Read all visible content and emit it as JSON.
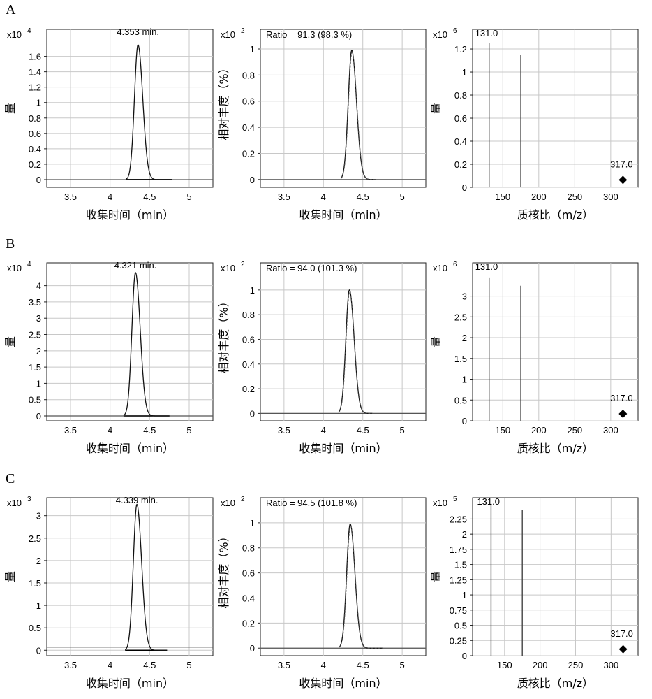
{
  "panels": [
    {
      "letter": "A",
      "chromatogram": {
        "type": "line",
        "multiplier": "x10",
        "exponent": "4",
        "peak_label": "4.353 min.",
        "ylabel": "量",
        "xlabel": "收集时间（min）",
        "xlim": [
          3.2,
          5.3
        ],
        "ylim": [
          -0.1,
          1.95
        ],
        "xticks": [
          3.5,
          4,
          4.5,
          5
        ],
        "xtick_labels": [
          "3.5",
          "4",
          "4.5",
          "5"
        ],
        "yticks": [
          0,
          0.2,
          0.4,
          0.6,
          0.8,
          1,
          1.2,
          1.4,
          1.6
        ],
        "ytick_labels": [
          "0",
          "0.2",
          "0.4",
          "0.6",
          "0.8",
          "1",
          "1.2",
          "1.4",
          "1.6"
        ],
        "baseline": 0,
        "peak": {
          "center": 4.353,
          "height": 1.75,
          "sigma_left": 0.045,
          "sigma_right": 0.06
        },
        "trace_start": 4.2,
        "trace_end": 4.78
      },
      "ratio": {
        "type": "line",
        "multiplier": "x10",
        "exponent": "2",
        "ratio_label": "Ratio = 91.3 (98.3 %)",
        "ylabel": "相对丰度（%）",
        "xlabel": "收集时间（min）",
        "xlim": [
          3.2,
          5.3
        ],
        "ylim": [
          -0.06,
          1.15
        ],
        "xticks": [
          3.5,
          4,
          4.5,
          5
        ],
        "xtick_labels": [
          "3.5",
          "4",
          "4.5",
          "5"
        ],
        "yticks": [
          0,
          0.2,
          0.4,
          0.6,
          0.8,
          1
        ],
        "ytick_labels": [
          "0",
          "0.2",
          "0.4",
          "0.6",
          "0.8",
          "1"
        ],
        "peak": {
          "center": 4.36,
          "height": 0.99,
          "sigma_left": 0.045,
          "sigma_right": 0.06
        },
        "trace_start": 4.22,
        "trace_end": 4.66
      },
      "spectrum": {
        "type": "bar",
        "multiplier": "x10",
        "exponent": "6",
        "ylabel": "量",
        "xlabel": "质核比（m/z）",
        "xlim": [
          108,
          338
        ],
        "ylim": [
          0,
          1.37
        ],
        "xticks": [
          150,
          200,
          250,
          300
        ],
        "xtick_labels": [
          "150",
          "200",
          "250",
          "300"
        ],
        "yticks": [
          0,
          0.2,
          0.4,
          0.6,
          0.8,
          1,
          1.2
        ],
        "ytick_labels": [
          "0",
          "0.2",
          "0.4",
          "0.6",
          "0.8",
          "1",
          "1.2"
        ],
        "bars": [
          {
            "mz": 131.0,
            "intensity": 1.25
          },
          {
            "mz": 175.0,
            "intensity": 1.15
          }
        ],
        "bar_label": "131.0",
        "precursor": {
          "mz": 317.0,
          "intensity": 0.04,
          "label": "317.0"
        }
      }
    },
    {
      "letter": "B",
      "chromatogram": {
        "type": "line",
        "multiplier": "x10",
        "exponent": "4",
        "peak_label": "4.321 min.",
        "ylabel": "量",
        "xlabel": "收集时间（min）",
        "xlim": [
          3.2,
          5.3
        ],
        "ylim": [
          -0.15,
          4.7
        ],
        "xticks": [
          3.5,
          4,
          4.5,
          5
        ],
        "xtick_labels": [
          "3.5",
          "4",
          "4.5",
          "5"
        ],
        "yticks": [
          0,
          0.5,
          1,
          1.5,
          2,
          2.5,
          3,
          3.5,
          4
        ],
        "ytick_labels": [
          "0",
          "0.5",
          "1",
          "1.5",
          "2",
          "2.5",
          "3",
          "3.5",
          "4"
        ],
        "baseline": 0,
        "peak": {
          "center": 4.321,
          "height": 4.4,
          "sigma_left": 0.045,
          "sigma_right": 0.06
        },
        "trace_start": 4.17,
        "trace_end": 4.75
      },
      "ratio": {
        "type": "line",
        "multiplier": "x10",
        "exponent": "2",
        "ratio_label": "Ratio = 94.0 (101.3 %)",
        "ylabel": "相对丰度（%）",
        "xlabel": "收集时间（min）",
        "xlim": [
          3.2,
          5.3
        ],
        "ylim": [
          -0.06,
          1.22
        ],
        "xticks": [
          3.5,
          4,
          4.5,
          5
        ],
        "xtick_labels": [
          "3.5",
          "4",
          "4.5",
          "5"
        ],
        "yticks": [
          0,
          0.2,
          0.4,
          0.6,
          0.8,
          1
        ],
        "ytick_labels": [
          "0",
          "0.2",
          "0.4",
          "0.6",
          "0.8",
          "1"
        ],
        "peak": {
          "center": 4.33,
          "height": 1.0,
          "sigma_left": 0.045,
          "sigma_right": 0.06
        },
        "trace_start": 4.19,
        "trace_end": 4.62
      },
      "spectrum": {
        "type": "bar",
        "multiplier": "x10",
        "exponent": "6",
        "ylabel": "量",
        "xlabel": "质核比（m/z）",
        "xlim": [
          108,
          338
        ],
        "ylim": [
          0,
          3.8
        ],
        "xticks": [
          150,
          200,
          250,
          300
        ],
        "xtick_labels": [
          "150",
          "200",
          "250",
          "300"
        ],
        "yticks": [
          0,
          0.5,
          1,
          1.5,
          2,
          2.5,
          3
        ],
        "ytick_labels": [
          "0",
          "0.5",
          "1",
          "1.5",
          "2",
          "2.5",
          "3"
        ],
        "bars": [
          {
            "mz": 131.0,
            "intensity": 3.45
          },
          {
            "mz": 175.0,
            "intensity": 3.25
          }
        ],
        "bar_label": "131.0",
        "precursor": {
          "mz": 317.0,
          "intensity": 0.1,
          "label": "317.0"
        }
      }
    },
    {
      "letter": "C",
      "chromatogram": {
        "type": "line",
        "multiplier": "x10",
        "exponent": "3",
        "peak_label": "4.339 min.",
        "ylabel": "量",
        "xlabel": "收集时间（min）",
        "xlim": [
          3.2,
          5.3
        ],
        "ylim": [
          -0.12,
          3.4
        ],
        "xticks": [
          3.5,
          4,
          4.5,
          5
        ],
        "xtick_labels": [
          "3.5",
          "4",
          "4.5",
          "5"
        ],
        "yticks": [
          0,
          0.5,
          1,
          1.5,
          2,
          2.5,
          3
        ],
        "ytick_labels": [
          "0",
          "0.5",
          "1",
          "1.5",
          "2",
          "2.5",
          "3"
        ],
        "baseline": 0.07,
        "peak": {
          "center": 4.339,
          "height": 3.25,
          "sigma_left": 0.045,
          "sigma_right": 0.06
        },
        "trace_start": 4.19,
        "trace_end": 4.72
      },
      "ratio": {
        "type": "line",
        "multiplier": "x10",
        "exponent": "2",
        "ratio_label": "Ratio = 94.5 (101.8 %)",
        "ylabel": "相对丰度（%）",
        "xlabel": "收集时间（min）",
        "xlim": [
          3.2,
          5.3
        ],
        "ylim": [
          -0.06,
          1.2
        ],
        "xticks": [
          3.5,
          4,
          4.5,
          5
        ],
        "xtick_labels": [
          "3.5",
          "4",
          "4.5",
          "5"
        ],
        "yticks": [
          0,
          0.2,
          0.4,
          0.6,
          0.8,
          1
        ],
        "ytick_labels": [
          "0",
          "0.2",
          "0.4",
          "0.6",
          "0.8",
          "1"
        ],
        "peak": {
          "center": 4.34,
          "height": 0.99,
          "sigma_left": 0.045,
          "sigma_right": 0.06
        },
        "trace_start": 4.2,
        "trace_end": 4.75
      },
      "spectrum": {
        "type": "bar",
        "multiplier": "x10",
        "exponent": "5",
        "ylabel": "量",
        "xlabel": "质核比（m/z）",
        "xlim": [
          105,
          338
        ],
        "ylim": [
          0,
          2.6
        ],
        "xticks": [
          150,
          200,
          250,
          300
        ],
        "xtick_labels": [
          "150",
          "200",
          "250",
          "300"
        ],
        "yticks": [
          0,
          0.25,
          0.5,
          0.75,
          1,
          1.25,
          1.5,
          1.75,
          2,
          2.25
        ],
        "ytick_labels": [
          "0",
          "0.25",
          "0.5",
          "0.75",
          "1",
          "1.25",
          "1.5",
          "1.75",
          "2",
          "2.25"
        ],
        "bars": [
          {
            "mz": 131.0,
            "intensity": 2.5
          },
          {
            "mz": 175.0,
            "intensity": 2.4
          }
        ],
        "bar_label": "131.0",
        "precursor": {
          "mz": 317.0,
          "intensity": 0.06,
          "label": "317.0"
        }
      }
    }
  ],
  "chart_data": [
    {
      "panel": "A",
      "type": "line",
      "peak_rt_min": 4.353,
      "peak_height": 1.75,
      "scale": "x10^4",
      "xlabel": "收集时间（min）",
      "ylabel": "量",
      "xlim": [
        3.2,
        5.3
      ]
    },
    {
      "panel": "A",
      "type": "line",
      "ratio": "Ratio = 91.3 (98.3 %)",
      "peak_height": 0.99,
      "scale": "x10^2",
      "xlabel": "收集时间（min）",
      "ylabel": "相对丰度（%）"
    },
    {
      "panel": "A",
      "type": "bar",
      "mz": [
        131.0,
        175.0,
        317.0
      ],
      "intensity": [
        1.25,
        1.15,
        0.04
      ],
      "scale": "x10^6",
      "xlabel": "质核比（m/z）",
      "ylabel": "量"
    },
    {
      "panel": "B",
      "type": "line",
      "peak_rt_min": 4.321,
      "peak_height": 4.4,
      "scale": "x10^4",
      "xlabel": "收集时间（min）",
      "ylabel": "量",
      "xlim": [
        3.2,
        5.3
      ]
    },
    {
      "panel": "B",
      "type": "line",
      "ratio": "Ratio = 94.0 (101.3 %)",
      "peak_height": 1.0,
      "scale": "x10^2",
      "xlabel": "收集时间（min）",
      "ylabel": "相对丰度（%）"
    },
    {
      "panel": "B",
      "type": "bar",
      "mz": [
        131.0,
        175.0,
        317.0
      ],
      "intensity": [
        3.45,
        3.25,
        0.1
      ],
      "scale": "x10^6",
      "xlabel": "质核比（m/z）",
      "ylabel": "量"
    },
    {
      "panel": "C",
      "type": "line",
      "peak_rt_min": 4.339,
      "peak_height": 3.25,
      "scale": "x10^3",
      "xlabel": "收集时间（min）",
      "ylabel": "量",
      "xlim": [
        3.2,
        5.3
      ]
    },
    {
      "panel": "C",
      "type": "line",
      "ratio": "Ratio = 94.5 (101.8 %)",
      "peak_height": 0.99,
      "scale": "x10^2",
      "xlabel": "收集时间（min）",
      "ylabel": "相对丰度（%）"
    },
    {
      "panel": "C",
      "type": "bar",
      "mz": [
        131.0,
        175.0,
        317.0
      ],
      "intensity": [
        2.5,
        2.4,
        0.06
      ],
      "scale": "x10^5",
      "xlabel": "质核比（m/z）",
      "ylabel": "量"
    }
  ]
}
